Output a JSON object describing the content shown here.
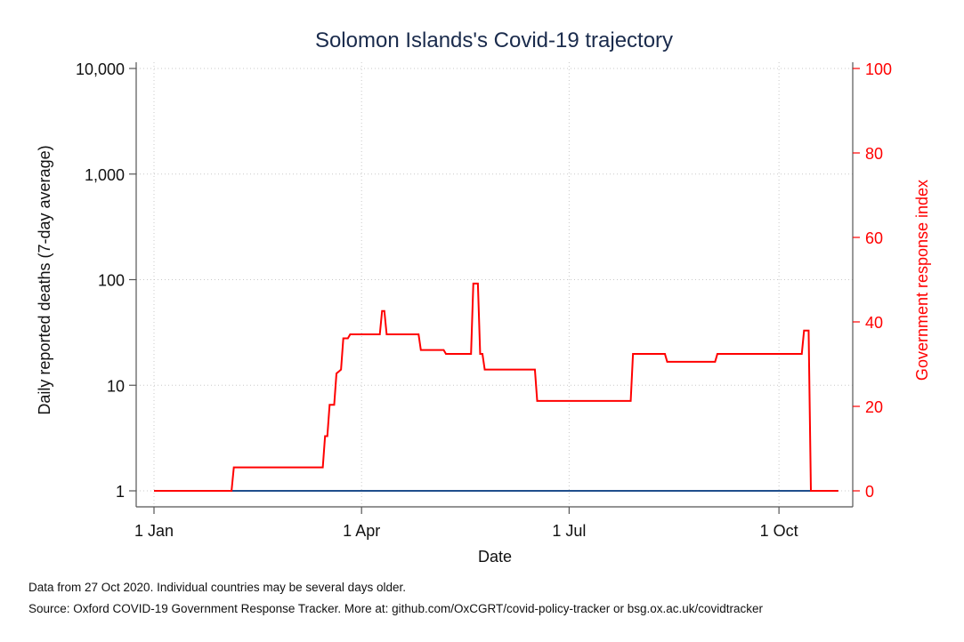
{
  "chart_data": {
    "type": "line",
    "title": "Solomon Islands's Covid-19 trajectory",
    "xlabel": "Date",
    "ylabel_left": "Daily reported deaths (7-day average)",
    "ylabel_right": "Government response index",
    "x_ticks": [
      {
        "label": "1 Jan",
        "date": "2020-01-01"
      },
      {
        "label": "1 Apr",
        "date": "2020-04-01"
      },
      {
        "label": "1 Jul",
        "date": "2020-07-01"
      },
      {
        "label": "1 Oct",
        "date": "2020-10-01"
      }
    ],
    "xlim": [
      "2020-01-01",
      "2020-10-27"
    ],
    "y_left": {
      "scale": "log",
      "ylim": [
        1,
        10000
      ],
      "ticks": [
        {
          "value": 1,
          "label": "1"
        },
        {
          "value": 10,
          "label": "10"
        },
        {
          "value": 100,
          "label": "100"
        },
        {
          "value": 1000,
          "label": "1,000"
        },
        {
          "value": 10000,
          "label": "10,000"
        }
      ]
    },
    "y_right": {
      "scale": "linear",
      "ylim": [
        0,
        100
      ],
      "ticks": [
        {
          "value": 0,
          "label": "0"
        },
        {
          "value": 20,
          "label": "20"
        },
        {
          "value": 40,
          "label": "40"
        },
        {
          "value": 60,
          "label": "60"
        },
        {
          "value": 80,
          "label": "80"
        },
        {
          "value": 100,
          "label": "100"
        }
      ]
    },
    "grid": true,
    "series": [
      {
        "axis": "left",
        "color": "#1f4e8c",
        "points": [
          [
            "2020-01-01",
            1
          ],
          [
            "2020-10-27",
            1
          ]
        ]
      },
      {
        "axis": "right",
        "color": "#ff0000",
        "points": [
          [
            "2020-01-01",
            0
          ],
          [
            "2020-02-04",
            0
          ],
          [
            "2020-02-05",
            5.56
          ],
          [
            "2020-03-15",
            5.56
          ],
          [
            "2020-03-16",
            12.96
          ],
          [
            "2020-03-17",
            12.96
          ],
          [
            "2020-03-18",
            20.37
          ],
          [
            "2020-03-20",
            20.37
          ],
          [
            "2020-03-21",
            27.78
          ],
          [
            "2020-03-23",
            28.7
          ],
          [
            "2020-03-24",
            36.11
          ],
          [
            "2020-03-26",
            36.11
          ],
          [
            "2020-03-27",
            37.04
          ],
          [
            "2020-04-09",
            37.04
          ],
          [
            "2020-04-10",
            42.59
          ],
          [
            "2020-04-11",
            42.59
          ],
          [
            "2020-04-12",
            37.04
          ],
          [
            "2020-04-26",
            37.04
          ],
          [
            "2020-04-27",
            33.33
          ],
          [
            "2020-05-07",
            33.33
          ],
          [
            "2020-05-08",
            32.41
          ],
          [
            "2020-05-19",
            32.41
          ],
          [
            "2020-05-20",
            49.07
          ],
          [
            "2020-05-22",
            49.07
          ],
          [
            "2020-05-23",
            32.41
          ],
          [
            "2020-05-24",
            32.41
          ],
          [
            "2020-05-25",
            28.7
          ],
          [
            "2020-06-16",
            28.7
          ],
          [
            "2020-06-17",
            21.3
          ],
          [
            "2020-07-28",
            21.3
          ],
          [
            "2020-07-29",
            32.41
          ],
          [
            "2020-08-12",
            32.41
          ],
          [
            "2020-08-13",
            30.56
          ],
          [
            "2020-09-03",
            30.56
          ],
          [
            "2020-09-04",
            32.41
          ],
          [
            "2020-10-11",
            32.41
          ],
          [
            "2020-10-12",
            37.96
          ],
          [
            "2020-10-14",
            37.96
          ],
          [
            "2020-10-15",
            0
          ],
          [
            "2020-10-27",
            0
          ]
        ]
      }
    ]
  },
  "footnotes": {
    "line1": "Data from 27 Oct 2020. Individual countries may be several days older.",
    "line2": "Source: Oxford COVID-19 Government Response Tracker. More at: github.com/OxCGRT/covid-policy-tracker or bsg.ox.ac.uk/covidtracker"
  }
}
